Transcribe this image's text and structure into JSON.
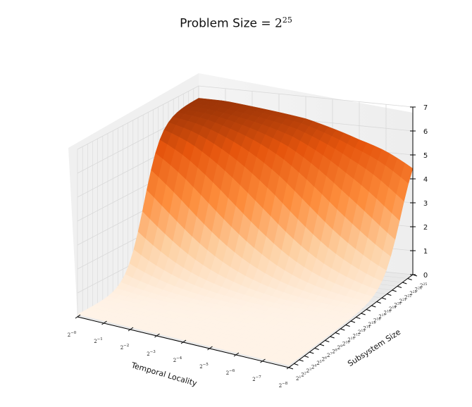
{
  "chart_data": {
    "type": "surface3d",
    "title": {
      "prefix": "Problem Size = ",
      "base": "2",
      "exponent": "25"
    },
    "xlabel": "Temporal Locality",
    "ylabel": "Subsystem Size",
    "zlabel": "",
    "x_ticks": [
      {
        "base": "2",
        "exp": "−0"
      },
      {
        "base": "2",
        "exp": "−1"
      },
      {
        "base": "2",
        "exp": "−2"
      },
      {
        "base": "2",
        "exp": "−3"
      },
      {
        "base": "2",
        "exp": "−4"
      },
      {
        "base": "2",
        "exp": "−5"
      },
      {
        "base": "2",
        "exp": "−6"
      },
      {
        "base": "2",
        "exp": "−7"
      },
      {
        "base": "2",
        "exp": "−8"
      }
    ],
    "y_ticks_exponents": [
      1,
      2,
      3,
      4,
      5,
      6,
      7,
      8,
      9,
      10,
      11,
      12,
      13,
      14,
      15,
      16,
      17,
      18,
      19,
      20,
      21,
      22,
      23,
      24,
      25
    ],
    "z_ticks": [
      0,
      1,
      2,
      3,
      4,
      5,
      6,
      7
    ],
    "zlim": [
      0,
      7
    ],
    "x_range_log2": [
      0,
      -8
    ],
    "y_range_log2": [
      1,
      25
    ],
    "grid": true,
    "colormap": "Oranges",
    "surface_profile_at_largest_subsystem": {
      "x_log2": [
        0,
        -1,
        -2,
        -3,
        -4,
        -5,
        -6,
        -7,
        -8
      ],
      "z": [
        6.5,
        6.5,
        6.4,
        6.3,
        6.2,
        6.0,
        5.8,
        5.7,
        5.5
      ]
    },
    "surface_profile_at_smallest_subsystem": {
      "x_log2": [
        0,
        -1,
        -2,
        -3,
        -4,
        -5,
        -6,
        -7,
        -8
      ],
      "z": [
        0.1,
        0.1,
        0.1,
        0.1,
        0.1,
        0.1,
        0.1,
        0.1,
        0.1
      ]
    }
  }
}
